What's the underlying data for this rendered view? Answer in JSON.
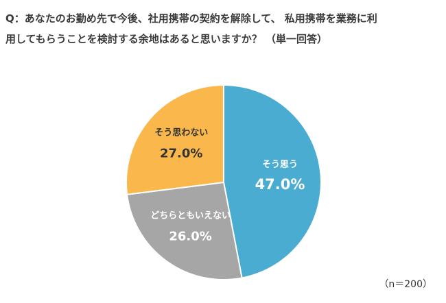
{
  "question": {
    "line1": "Q：あなたのお勤め先で今後、社用携帯の契約を解除して、 私用携帯を業務に利",
    "line2": "用してもらうことを検討する余地はあると思いますか？ （単一回答）"
  },
  "sample_size": "（n＝200）",
  "chart_data": {
    "type": "pie",
    "title": "",
    "start": "12 o'clock",
    "direction": "clockwise",
    "slices": [
      {
        "label": "そう思う",
        "value": 47.0,
        "display": "47.0%",
        "color": "#4BACD1"
      },
      {
        "label": "どちらともいえない",
        "value": 26.0,
        "display": "26.0%",
        "color": "#A6A6A6"
      },
      {
        "label": "そう思わない",
        "value": 27.0,
        "display": "27.0%",
        "color": "#FAB74C"
      }
    ]
  }
}
